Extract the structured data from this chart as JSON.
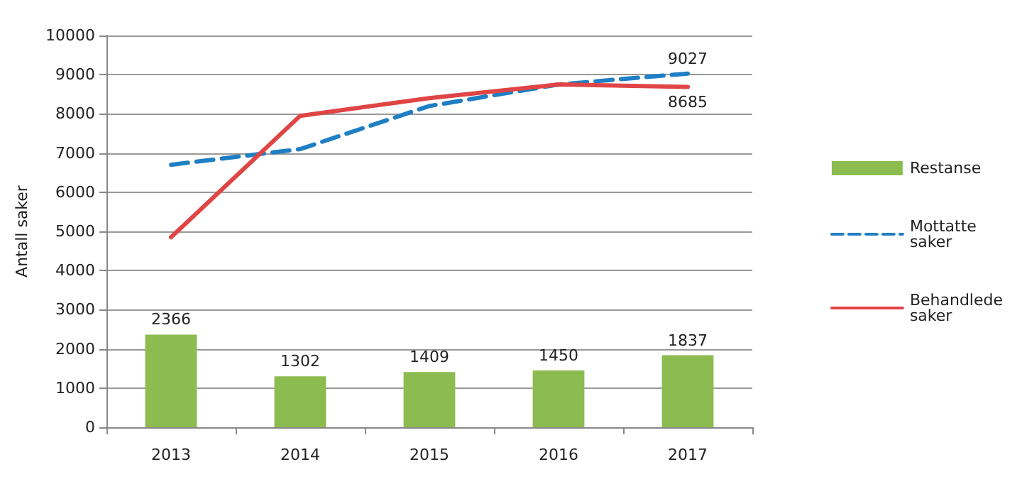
{
  "chart_data": {
    "type": "bar",
    "ylabel": "Antall saker",
    "categories": [
      "2013",
      "2014",
      "2015",
      "2016",
      "2017"
    ],
    "series": [
      {
        "name": "Restanse",
        "color": "#8cbc4f",
        "values": [
          2366,
          1302,
          1409,
          1450,
          1837
        ],
        "value_labels": [
          "2366",
          "1302",
          "1409",
          "1450",
          "1837"
        ]
      },
      {
        "name": "Mottatte saker",
        "type": "line",
        "line_style": "dashed",
        "color": "#1f7fc4",
        "values": [
          6700,
          7100,
          8200,
          8750,
          9027
        ],
        "value_labels": [
          null,
          null,
          null,
          null,
          "9027"
        ]
      },
      {
        "name": "Behandlede saker",
        "type": "line",
        "line_style": "solid",
        "color": "#e04545",
        "values": [
          4850,
          7950,
          8400,
          8750,
          8685
        ],
        "value_labels": [
          null,
          null,
          null,
          null,
          "8685"
        ]
      }
    ],
    "ylim": [
      0,
      10000
    ],
    "yticks": [
      0,
      1000,
      2000,
      3000,
      4000,
      5000,
      6000,
      7000,
      8000,
      9000,
      10000
    ],
    "grid": "y",
    "legend": "right"
  }
}
